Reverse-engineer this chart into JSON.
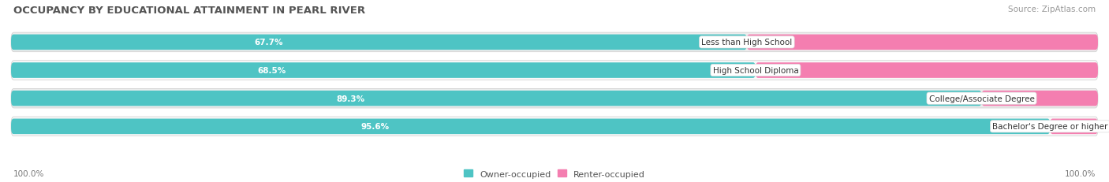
{
  "title": "OCCUPANCY BY EDUCATIONAL ATTAINMENT IN PEARL RIVER",
  "source": "Source: ZipAtlas.com",
  "categories": [
    "Less than High School",
    "High School Diploma",
    "College/Associate Degree",
    "Bachelor's Degree or higher"
  ],
  "owner_values": [
    67.7,
    68.5,
    89.3,
    95.6
  ],
  "renter_values": [
    32.3,
    31.5,
    10.7,
    4.4
  ],
  "owner_color": "#4ec4c4",
  "renter_color": "#f47eb0",
  "row_bg_color_odd": "#ececec",
  "row_bg_color_even": "#f8f8f8",
  "label_bg": "#ffffff",
  "label_border": "#dddddd",
  "title_fontsize": 9.5,
  "source_fontsize": 7.5,
  "value_fontsize": 7.5,
  "label_fontsize": 7.5,
  "legend_fontsize": 8,
  "axis_tick_fontsize": 7.5,
  "axis_label_left": "100.0%",
  "axis_label_right": "100.0%",
  "background_color": "#ffffff",
  "owner_label": "Owner-occupied",
  "renter_label": "Renter-occupied"
}
